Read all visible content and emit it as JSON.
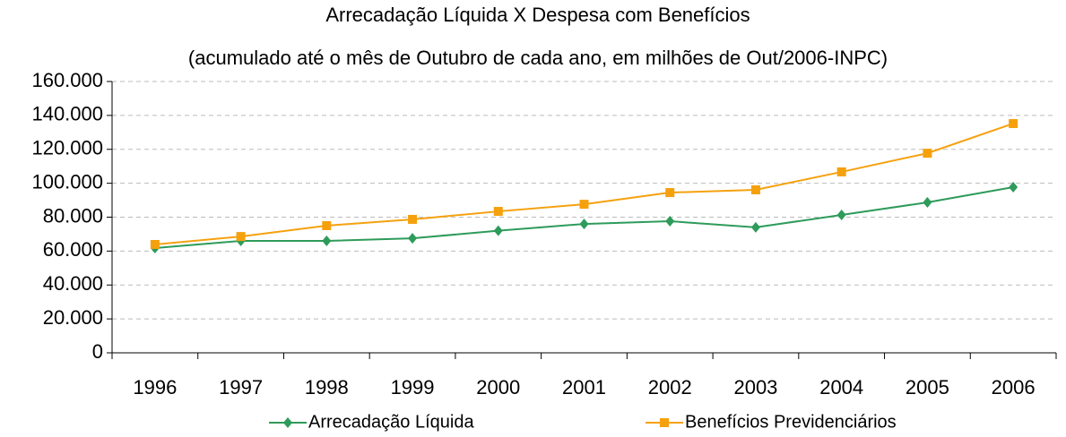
{
  "chart_data": {
    "type": "line",
    "title": "Arrecadação Líquida X Despesa com Benefícios",
    "subtitle": "(acumulado até o mês de Outubro de cada ano, em milhões de Out/2006-INPC)",
    "categories": [
      "1996",
      "1997",
      "1998",
      "1999",
      "2000",
      "2001",
      "2002",
      "2003",
      "2004",
      "2005",
      "2006"
    ],
    "series": [
      {
        "name": "Arrecadação Líquida",
        "color": "#2e9b5a",
        "marker": "diamond",
        "values": [
          61800,
          66000,
          66000,
          67500,
          72000,
          76000,
          77600,
          74000,
          81300,
          88700,
          97700
        ]
      },
      {
        "name": "Benefícios Previdenciários",
        "color": "#f5a10e",
        "marker": "square",
        "values": [
          63900,
          68600,
          75000,
          78700,
          83400,
          87600,
          94500,
          96100,
          106700,
          117700,
          135200
        ]
      }
    ],
    "ylim": [
      0,
      160000
    ],
    "yticks": [
      0,
      {
        "value": 20000,
        "label": "20.000"
      },
      {
        "value": 40000,
        "label": "40.000"
      },
      {
        "value": 60000,
        "label": "60.000"
      },
      {
        "value": 80000,
        "label": "80.000"
      },
      {
        "value": 100000,
        "label": "100.000"
      },
      {
        "value": 120000,
        "label": "120.000"
      },
      {
        "value": 140000,
        "label": "140.000"
      },
      {
        "value": 160000,
        "label": "160.000"
      }
    ],
    "grid": true,
    "legend": "bottom"
  }
}
